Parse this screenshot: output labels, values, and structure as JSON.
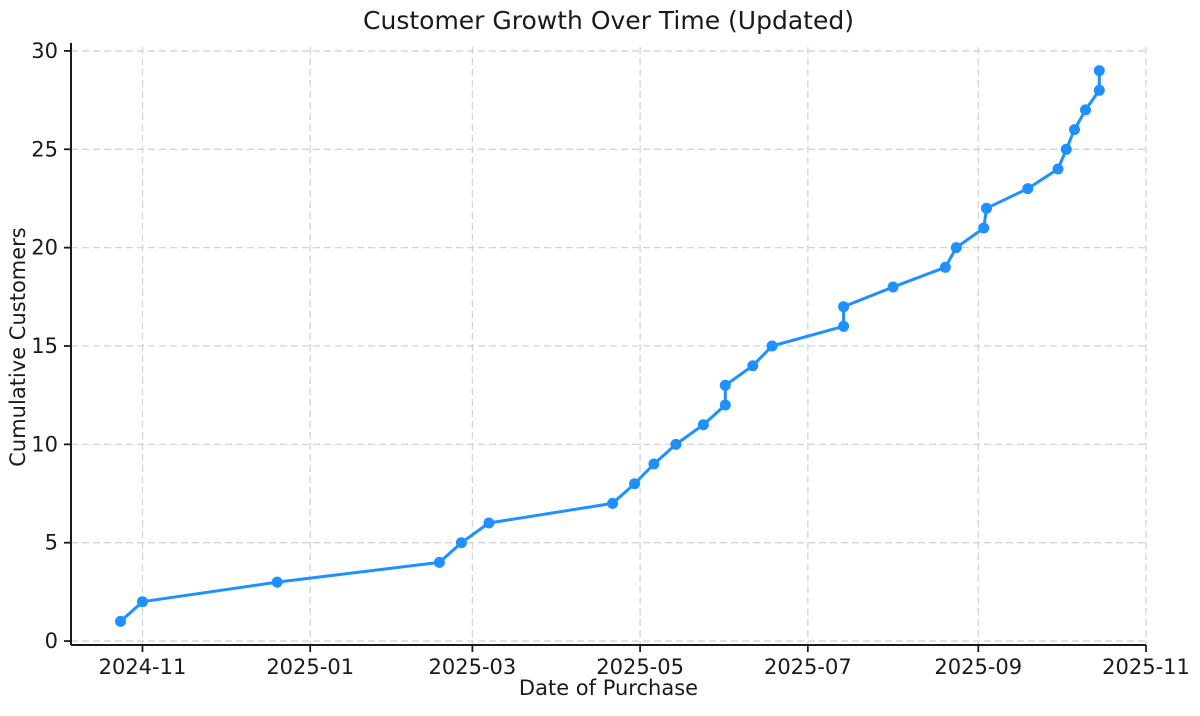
{
  "figure": {
    "background_color": "#ffffff",
    "text_color": "#1a1a1a",
    "spine_color": "#1a1a1a",
    "grid_color": "#d4d4d4"
  },
  "chart_data": {
    "type": "line",
    "title": "Customer Growth Over Time (Updated)",
    "xlabel": "Date of Purchase",
    "ylabel": "Cumulative Customers",
    "series": [
      {
        "name": "Cumulative Customers",
        "line_color": "#1E90FF",
        "marker": "circle",
        "points": [
          {
            "date": "2024-10-24",
            "value": 1
          },
          {
            "date": "2024-11-01",
            "value": 2
          },
          {
            "date": "2024-12-20",
            "value": 3
          },
          {
            "date": "2025-02-17",
            "value": 4
          },
          {
            "date": "2025-02-25",
            "value": 5
          },
          {
            "date": "2025-03-07",
            "value": 6
          },
          {
            "date": "2025-04-21",
            "value": 7
          },
          {
            "date": "2025-04-29",
            "value": 8
          },
          {
            "date": "2025-05-06",
            "value": 9
          },
          {
            "date": "2025-05-14",
            "value": 10
          },
          {
            "date": "2025-05-24",
            "value": 11
          },
          {
            "date": "2025-06-01",
            "value": 12
          },
          {
            "date": "2025-06-01",
            "value": 13
          },
          {
            "date": "2025-06-11",
            "value": 14
          },
          {
            "date": "2025-06-18",
            "value": 15
          },
          {
            "date": "2025-07-14",
            "value": 16
          },
          {
            "date": "2025-07-14",
            "value": 17
          },
          {
            "date": "2025-08-01",
            "value": 18
          },
          {
            "date": "2025-08-20",
            "value": 19
          },
          {
            "date": "2025-08-24",
            "value": 20
          },
          {
            "date": "2025-09-03",
            "value": 21
          },
          {
            "date": "2025-09-04",
            "value": 22
          },
          {
            "date": "2025-09-19",
            "value": 23
          },
          {
            "date": "2025-09-30",
            "value": 24
          },
          {
            "date": "2025-10-03",
            "value": 25
          },
          {
            "date": "2025-10-06",
            "value": 26
          },
          {
            "date": "2025-10-10",
            "value": 27
          },
          {
            "date": "2025-10-15",
            "value": 28
          },
          {
            "date": "2025-10-15",
            "value": 29
          }
        ]
      }
    ],
    "x_ticks": [
      {
        "date": "2024-11-01",
        "label": "2024-11"
      },
      {
        "date": "2025-01-01",
        "label": "2025-01"
      },
      {
        "date": "2025-03-01",
        "label": "2025-03"
      },
      {
        "date": "2025-05-01",
        "label": "2025-05"
      },
      {
        "date": "2025-07-01",
        "label": "2025-07"
      },
      {
        "date": "2025-09-01",
        "label": "2025-09"
      },
      {
        "date": "2025-11-01",
        "label": "2025-11"
      }
    ],
    "y_ticks": [
      {
        "value": 0,
        "label": "0"
      },
      {
        "value": 5,
        "label": "5"
      },
      {
        "value": 10,
        "label": "10"
      },
      {
        "value": 15,
        "label": "15"
      },
      {
        "value": 20,
        "label": "20"
      },
      {
        "value": 25,
        "label": "25"
      },
      {
        "value": 30,
        "label": "30"
      }
    ],
    "xlim": [
      "2024-10-06",
      "2025-11-01"
    ],
    "ylim": [
      -0.2,
      30.2
    ],
    "grid": true,
    "grid_style": "dashed",
    "legend_position": "none"
  }
}
